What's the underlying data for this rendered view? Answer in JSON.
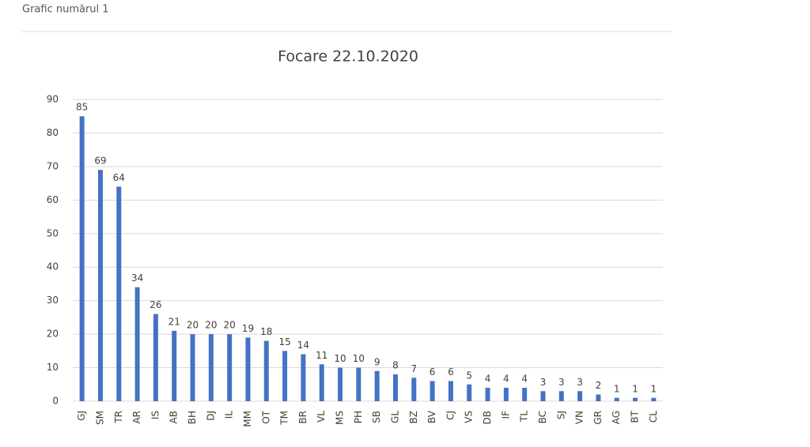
{
  "header": {
    "title": "Grafic numărul 1"
  },
  "chart_data": {
    "type": "bar",
    "title": "Focare 22.10.2020",
    "categories": [
      "GJ",
      "SM",
      "TR",
      "AR",
      "IS",
      "AB",
      "BH",
      "DJ",
      "IL",
      "MM",
      "OT",
      "TM",
      "BR",
      "VL",
      "MS",
      "PH",
      "SB",
      "GL",
      "BZ",
      "BV",
      "CJ",
      "VS",
      "DB",
      "IF",
      "TL",
      "BC",
      "SJ",
      "VN",
      "GR",
      "AG",
      "BT",
      "CL"
    ],
    "values": [
      85,
      69,
      64,
      34,
      26,
      21,
      20,
      20,
      20,
      19,
      18,
      15,
      14,
      11,
      10,
      10,
      9,
      8,
      7,
      6,
      6,
      5,
      4,
      4,
      4,
      3,
      3,
      3,
      2,
      1,
      1,
      1
    ],
    "color": "#4472c4",
    "ylim": [
      0,
      90
    ],
    "yticks": [
      0,
      10,
      20,
      30,
      40,
      50,
      60,
      70,
      80,
      90
    ],
    "grid": true
  }
}
